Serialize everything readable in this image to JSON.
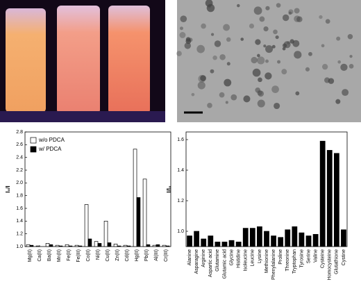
{
  "chart_data": [
    {
      "type": "bar",
      "y_label": "I₀/I",
      "categories": [
        "Mg(II)",
        "Ca(II)",
        "Ba(II)",
        "Mn(II)",
        "Fe(II)",
        "Fe(III)",
        "Co(II)",
        "Ni(II)",
        "Cu(II)",
        "Zn(II)",
        "Cd(II)",
        "Hg(II)",
        "Pb(II)",
        "Al(III)",
        "Cr(III)"
      ],
      "series": [
        {
          "name": "w/o PDCA",
          "color": "#ffffff",
          "values": [
            1.03,
            1.01,
            1.05,
            1.02,
            1.03,
            1.02,
            1.66,
            1.08,
            1.4,
            1.04,
            1.02,
            2.53,
            2.06,
            1.02,
            1.02
          ]
        },
        {
          "name": "w/ PDCA",
          "color": "#000000",
          "values": [
            1.02,
            1.0,
            1.03,
            1.01,
            1.01,
            1.01,
            1.12,
            1.05,
            1.06,
            1.01,
            1.01,
            1.77,
            1.03,
            1.03,
            1.01
          ]
        }
      ],
      "ylim": [
        1.0,
        2.8
      ],
      "yticks": [
        {
          "value": 1.0,
          "label": "1.0"
        },
        1.2,
        1.4,
        1.6,
        1.8,
        {
          "value": 2.0,
          "label": "2.0"
        },
        2.2,
        2.4,
        2.6,
        2.8
      ],
      "legend": "upper left"
    },
    {
      "type": "bar",
      "y_label": "I/I₀",
      "categories": [
        "Alanine",
        "Asparagine",
        "Arginine",
        "Aspartic acid",
        "Glutamine",
        "Glutamic acid",
        "Glycine",
        "Histidine",
        "Isoleucine",
        "Leucine",
        "Lysine",
        "Methionine",
        "Phenylalanine",
        "Proline",
        "Threonine",
        "Tryptophan",
        "Tyrosine",
        "Serine",
        "Valine",
        "Cysteine",
        "Homocysteine",
        "Glutathione",
        "Cystine"
      ],
      "series": [
        {
          "color": "#000000",
          "values": [
            0.97,
            1.0,
            0.95,
            0.97,
            0.93,
            0.93,
            0.94,
            0.93,
            1.02,
            1.02,
            1.03,
            1.0,
            0.97,
            0.96,
            1.01,
            1.03,
            0.99,
            0.97,
            0.98,
            1.59,
            1.53,
            1.51,
            1.01
          ]
        }
      ],
      "ylim": [
        0.9,
        1.65
      ],
      "yticks": [
        {
          "value": 1.0,
          "label": "1.0"
        },
        1.2,
        1.4,
        1.6
      ]
    }
  ]
}
